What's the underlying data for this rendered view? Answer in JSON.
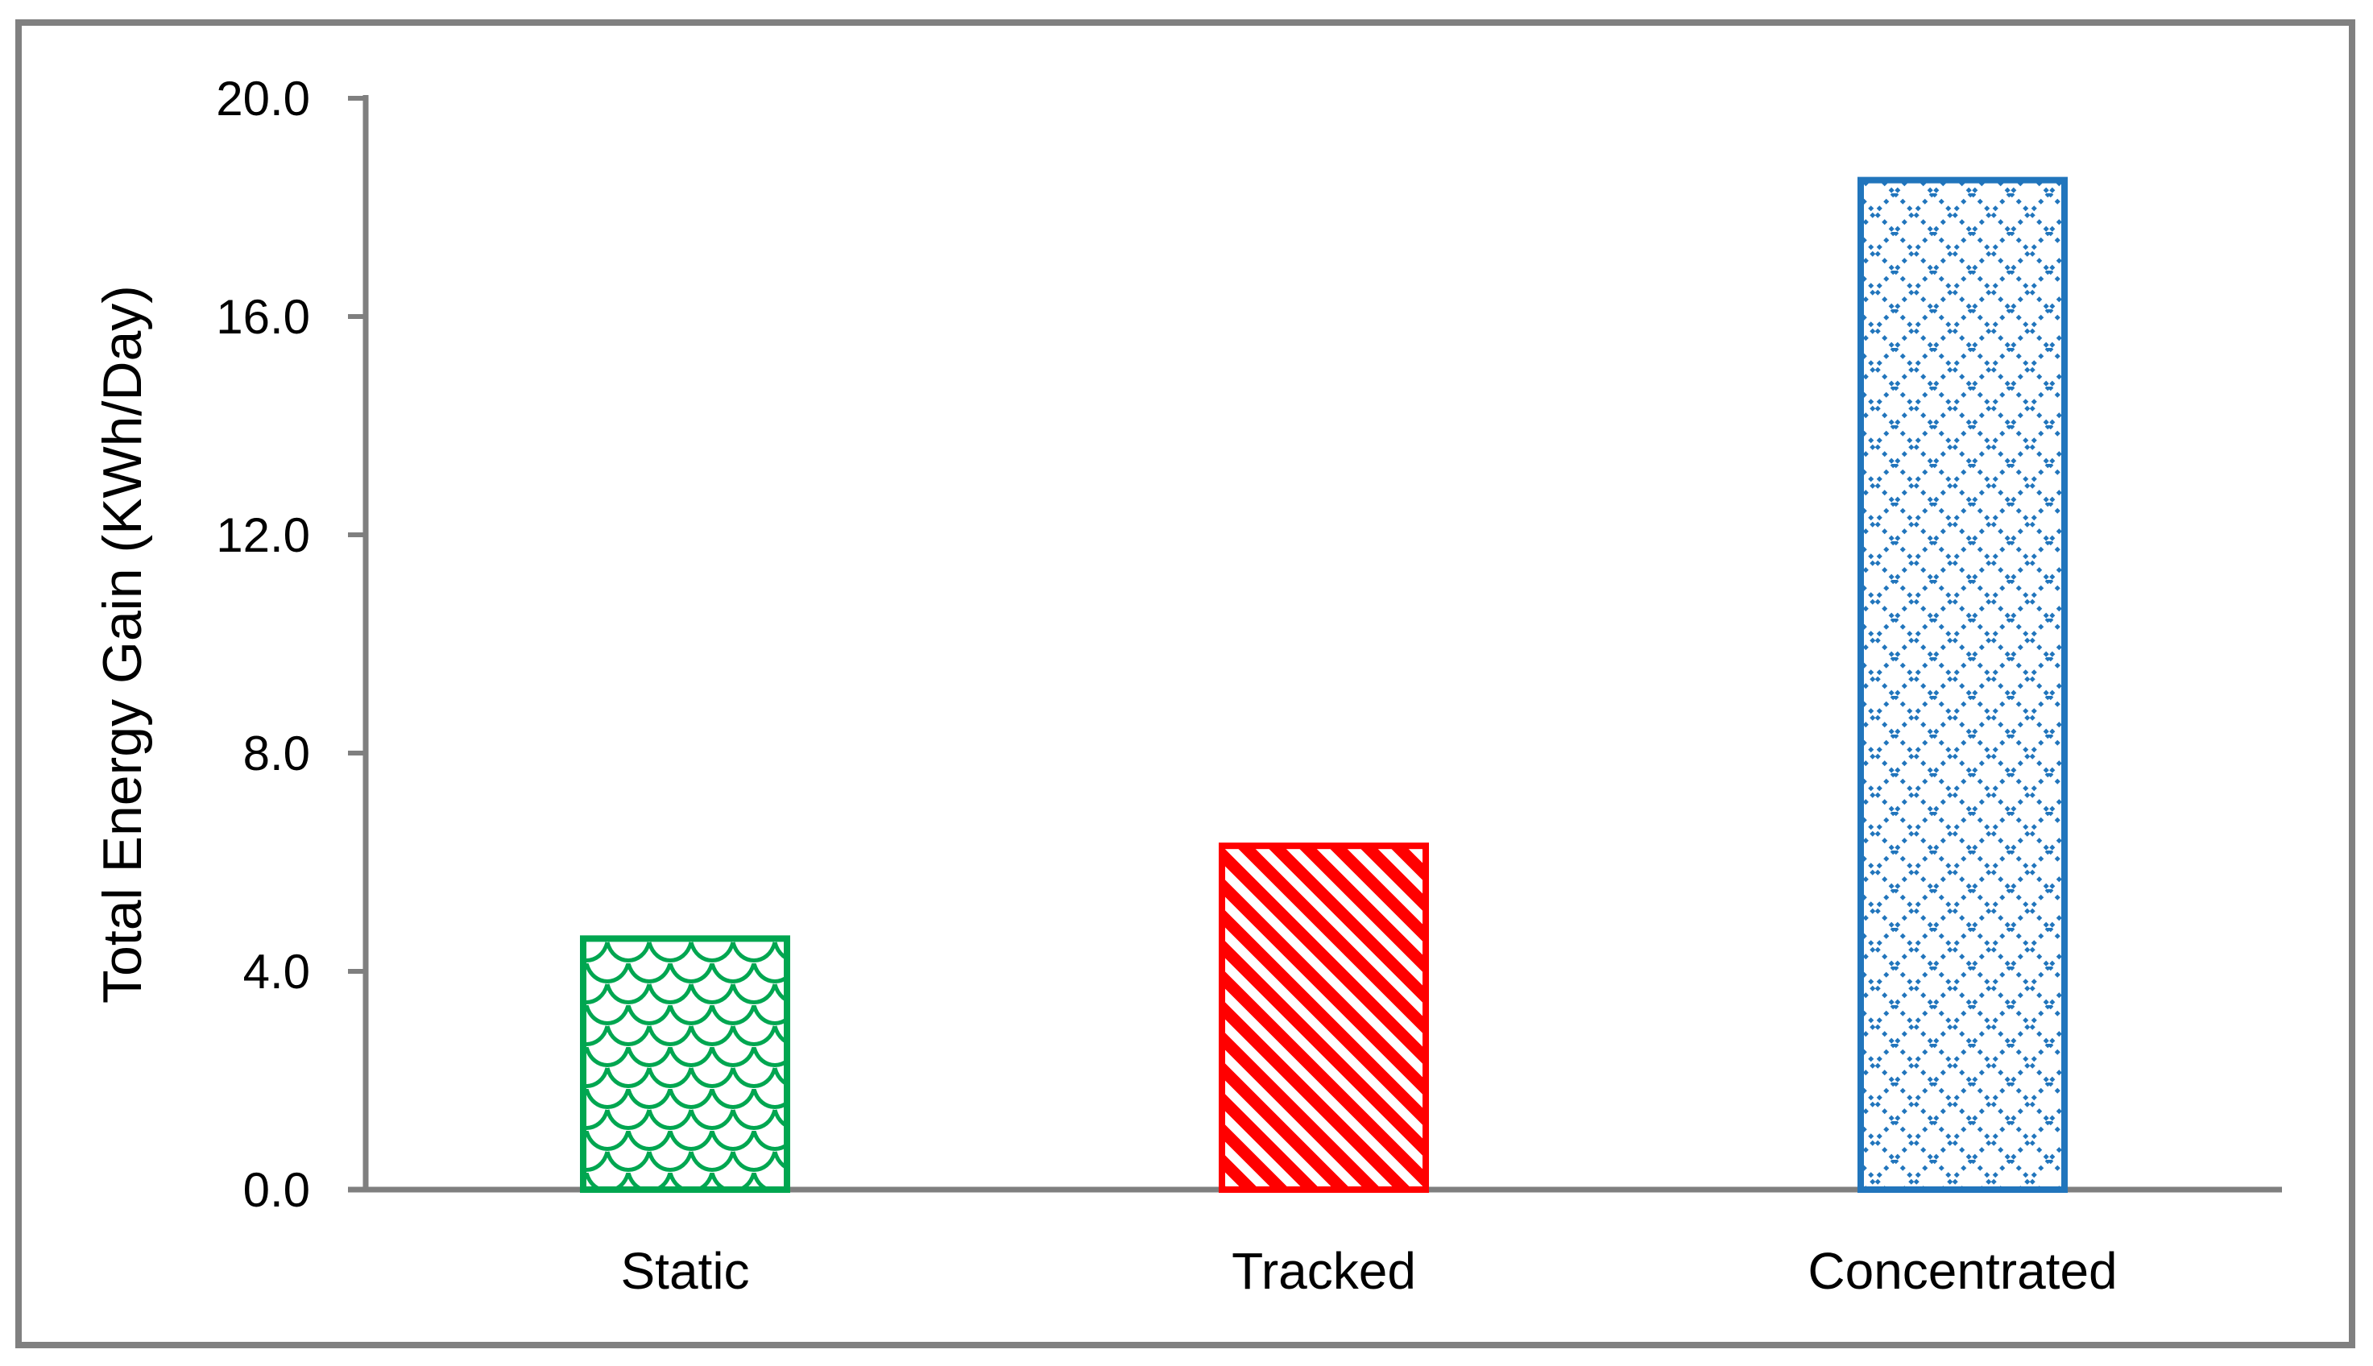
{
  "figure": {
    "border_color": "#808080",
    "background_color": "#FFFFFF"
  },
  "chart_data": {
    "type": "bar",
    "title": "",
    "categories": [
      "Static",
      "Tracked",
      "Concentrated"
    ],
    "values": [
      4.6,
      6.3,
      18.5
    ],
    "xlabel": "",
    "ylabel": "Total Energy Gain (KWh/Day)",
    "ylim": [
      0,
      20
    ],
    "ytick_step": 4,
    "ytick_labels": [
      "0.0",
      "4.0",
      "8.0",
      "12.0",
      "16.0",
      "20.0"
    ],
    "grid": false,
    "legend": false,
    "axis_color": "#7F7F7F",
    "text_color": "#000000",
    "series_styles": [
      {
        "category": "Static",
        "color": "#00A650",
        "pattern": "shingle-scale"
      },
      {
        "category": "Tracked",
        "color": "#FF0000",
        "pattern": "diagonal-stripe-down"
      },
      {
        "category": "Concentrated",
        "color": "#2175BC",
        "pattern": "dotted-diamond"
      }
    ]
  }
}
